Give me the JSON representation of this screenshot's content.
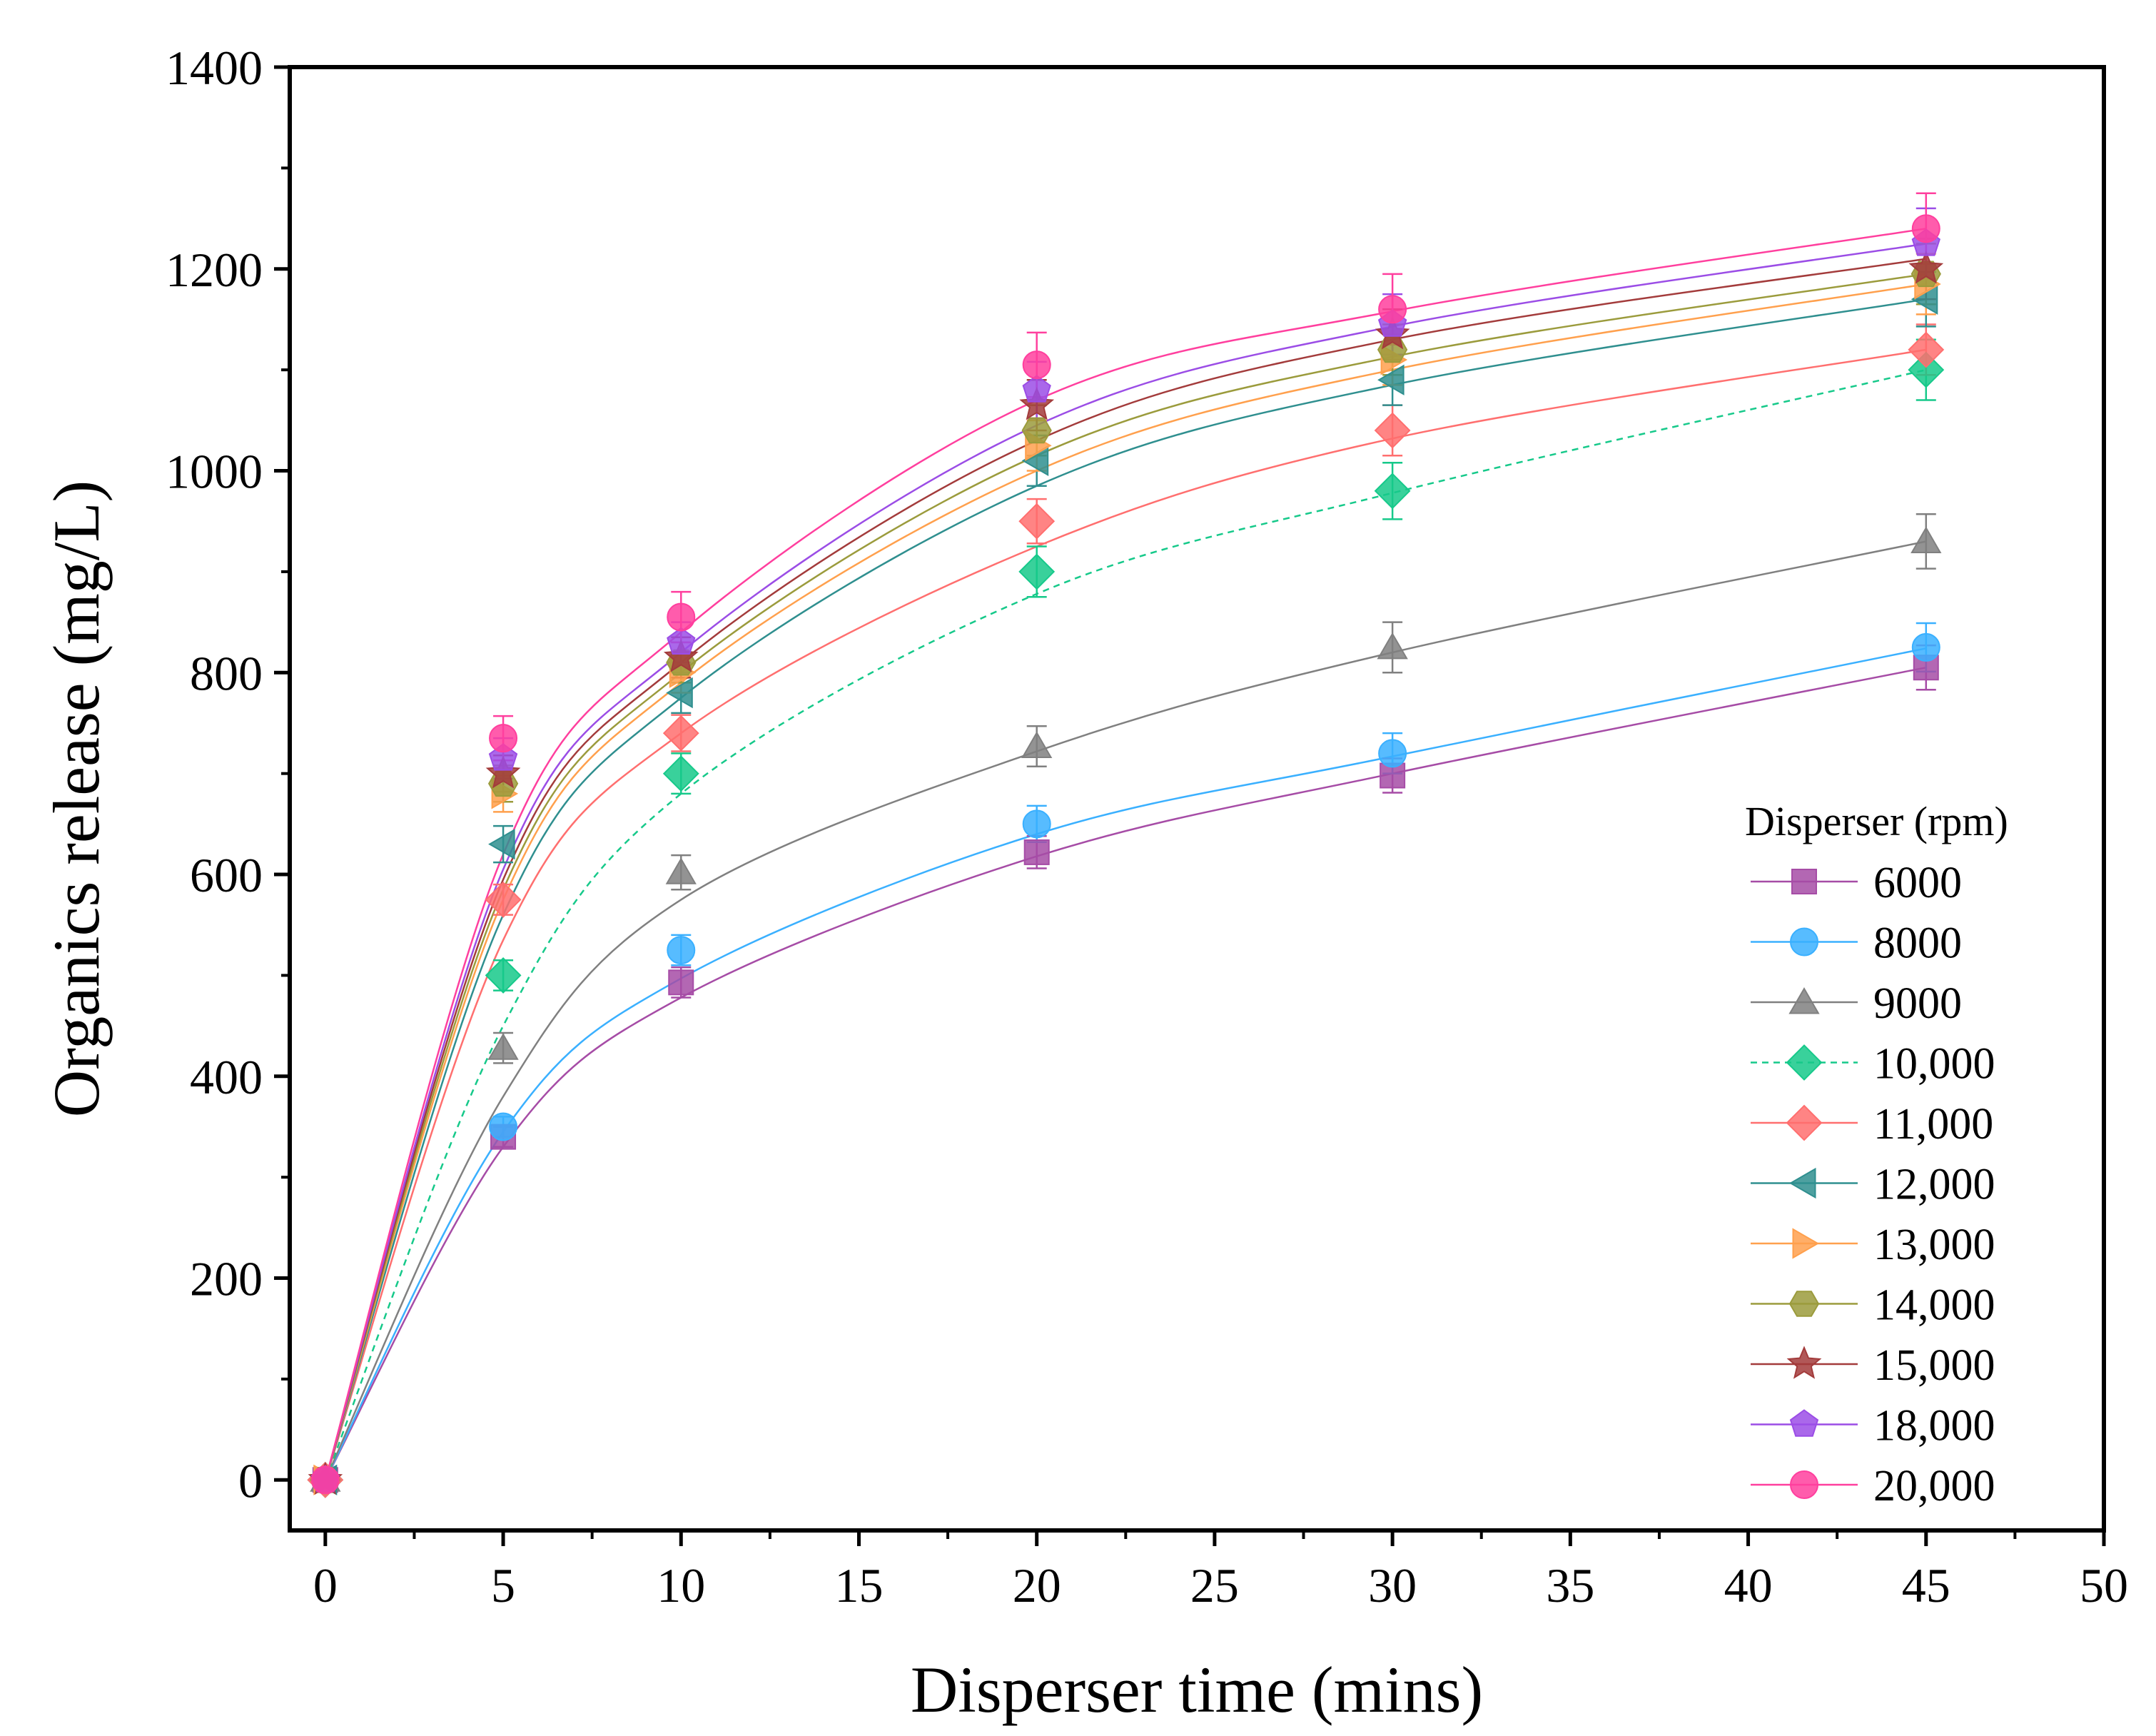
{
  "chart_data": {
    "type": "scatter",
    "title": "",
    "xlabel": "Disperser time (mins)",
    "ylabel": "Organics release (mg/L)",
    "xlim": [
      -1,
      50
    ],
    "ylim": [
      -50,
      1400
    ],
    "xticks": [
      "0",
      "5",
      "10",
      "15",
      "20",
      "25",
      "30",
      "35",
      "40",
      "45",
      "50"
    ],
    "yticks": [
      "0",
      "200",
      "400",
      "600",
      "800",
      "1000",
      "1200",
      "1400"
    ],
    "grid": false,
    "legend": {
      "title": "Disperser (rpm)",
      "placement": "right"
    },
    "x": [
      0,
      5,
      10,
      20,
      30,
      45
    ],
    "series": [
      {
        "name": "6000",
        "color": "#a64ca6",
        "marker": "square",
        "line": "solid",
        "values": [
          0,
          340,
          493,
          622,
          698,
          805
        ],
        "errors": [
          5,
          10,
          15,
          16,
          17,
          22
        ],
        "fit": [
          0,
          330,
          478,
          618,
          700,
          805
        ]
      },
      {
        "name": "8000",
        "color": "#3ab0ff",
        "marker": "circle",
        "line": "solid",
        "values": [
          0,
          350,
          525,
          650,
          720,
          825
        ],
        "errors": [
          5,
          10,
          15,
          18,
          20,
          24
        ],
        "fit": [
          0,
          345,
          497,
          640,
          717,
          824
        ]
      },
      {
        "name": "9000",
        "color": "#808080",
        "marker": "triangle-up",
        "line": "solid",
        "values": [
          0,
          428,
          602,
          727,
          825,
          930
        ],
        "errors": [
          5,
          15,
          17,
          20,
          25,
          27
        ],
        "fit": [
          0,
          380,
          575,
          722,
          820,
          930
        ]
      },
      {
        "name": "10,000",
        "color": "#16c98a",
        "marker": "diamond",
        "line": "dashed",
        "values": [
          0,
          500,
          700,
          900,
          980,
          1100
        ],
        "errors": [
          5,
          15,
          20,
          25,
          28,
          30
        ],
        "fit": [
          0,
          450,
          680,
          878,
          978,
          1100
        ]
      },
      {
        "name": "11,000",
        "color": "#ff6f6f",
        "marker": "diamond",
        "line": "solid",
        "values": [
          0,
          575,
          740,
          950,
          1040,
          1120
        ],
        "errors": [
          5,
          15,
          18,
          22,
          25,
          25
        ],
        "fit": [
          0,
          535,
          740,
          925,
          1032,
          1120
        ]
      },
      {
        "name": "12,000",
        "color": "#2f8f8f",
        "marker": "triangle-left",
        "line": "solid",
        "values": [
          0,
          630,
          780,
          1010,
          1090,
          1170
        ],
        "errors": [
          5,
          18,
          20,
          25,
          25,
          27
        ],
        "fit": [
          0,
          560,
          775,
          985,
          1085,
          1170
        ]
      },
      {
        "name": "13,000",
        "color": "#ffa04d",
        "marker": "triangle-right",
        "line": "solid",
        "values": [
          0,
          680,
          800,
          1025,
          1110,
          1185
        ],
        "errors": [
          5,
          18,
          20,
          25,
          25,
          30
        ],
        "fit": [
          0,
          575,
          790,
          1000,
          1100,
          1185
        ]
      },
      {
        "name": "14,000",
        "color": "#9b9b3c",
        "marker": "hexagon",
        "line": "solid",
        "values": [
          0,
          690,
          810,
          1040,
          1120,
          1195
        ],
        "errors": [
          5,
          18,
          20,
          25,
          25,
          30
        ],
        "fit": [
          0,
          585,
          800,
          1015,
          1113,
          1195
        ]
      },
      {
        "name": "15,000",
        "color": "#a33b3b",
        "marker": "star",
        "line": "solid",
        "values": [
          0,
          700,
          815,
          1065,
          1135,
          1200
        ],
        "errors": [
          5,
          18,
          20,
          25,
          25,
          30
        ],
        "fit": [
          0,
          595,
          810,
          1030,
          1130,
          1210
        ]
      },
      {
        "name": "18,000",
        "color": "#9b4de6",
        "marker": "pentagon",
        "line": "solid",
        "values": [
          0,
          715,
          830,
          1080,
          1145,
          1225
        ],
        "errors": [
          5,
          20,
          20,
          28,
          30,
          35
        ],
        "fit": [
          0,
          605,
          820,
          1045,
          1143,
          1225
        ]
      },
      {
        "name": "20,000",
        "color": "#ff3f9e",
        "marker": "circle",
        "line": "solid",
        "values": [
          0,
          735,
          855,
          1105,
          1160,
          1240
        ],
        "errors": [
          5,
          22,
          25,
          32,
          35,
          35
        ],
        "fit": [
          0,
          620,
          840,
          1070,
          1158,
          1240
        ]
      }
    ]
  }
}
